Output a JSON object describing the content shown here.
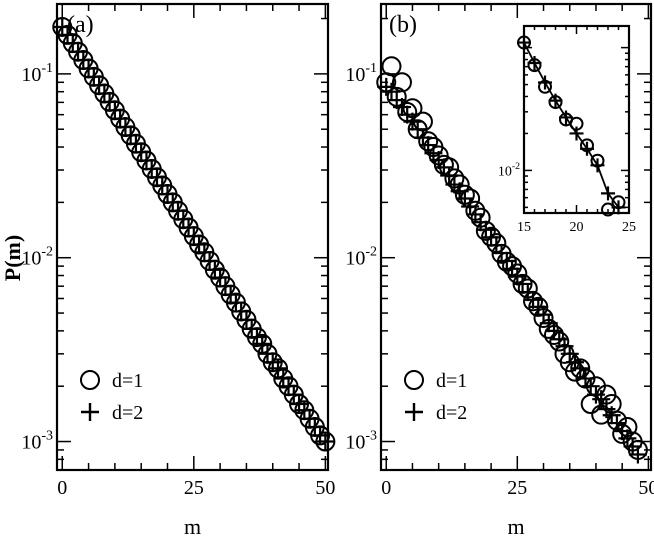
{
  "figure": {
    "ylabel": "P(m)",
    "legend": [
      {
        "label": "d=1",
        "marker": "circle"
      },
      {
        "label": "d=2",
        "marker": "plus"
      }
    ]
  },
  "chart_data": [
    {
      "type": "scatter",
      "panel_label": "(a)",
      "xlabel": "m",
      "ylabel": "P(m)",
      "xlim": [
        -1,
        50.5
      ],
      "ylim": [
        0.0007,
        0.24
      ],
      "y_scale": "log",
      "x_ticks": [
        0,
        25,
        50
      ],
      "y_ticks": [
        0.1,
        0.01,
        0.001
      ],
      "y_tick_labels": [
        {
          "base": "10",
          "exp": "-1"
        },
        {
          "base": "10",
          "exp": "-2"
        },
        {
          "base": "10",
          "exp": "-3"
        }
      ],
      "legend_placement": "bottom-left",
      "series": [
        {
          "name": "d=1",
          "marker": "circle",
          "x": [
            0,
            1,
            2,
            3,
            4,
            5,
            6,
            7,
            8,
            9,
            10,
            11,
            12,
            13,
            14,
            15,
            16,
            17,
            18,
            19,
            20,
            21,
            22,
            23,
            24,
            25,
            26,
            27,
            28,
            29,
            30,
            31,
            32,
            33,
            34,
            35,
            36,
            37,
            38,
            39,
            40,
            41,
            42,
            43,
            44,
            45,
            46,
            47,
            48,
            49,
            50
          ],
          "y": [
            0.18,
            0.163,
            0.147,
            0.132,
            0.119,
            0.107,
            0.0964,
            0.0868,
            0.0782,
            0.0704,
            0.0634,
            0.0571,
            0.0514,
            0.0463,
            0.0417,
            0.0375,
            0.0338,
            0.0304,
            0.0274,
            0.0247,
            0.0222,
            0.02,
            0.018,
            0.0162,
            0.0146,
            0.0131,
            0.0118,
            0.0107,
            0.0096,
            0.0086,
            0.0078,
            0.007,
            0.0063,
            0.0057,
            0.0051,
            0.0046,
            0.0041,
            0.0037,
            0.0034,
            0.003,
            0.0027,
            0.0025,
            0.0022,
            0.002,
            0.0018,
            0.0016,
            0.00148,
            0.00133,
            0.0012,
            0.00108,
            0.001
          ]
        },
        {
          "name": "d=2",
          "marker": "plus",
          "x": [
            0,
            1,
            2,
            3,
            4,
            5,
            6,
            7,
            8,
            9,
            10,
            11,
            12,
            13,
            14,
            15,
            16,
            17,
            18,
            19,
            20,
            21,
            22,
            23,
            24,
            25,
            26,
            27,
            28,
            29,
            30,
            31,
            32,
            33,
            34,
            35,
            36,
            37,
            38,
            39,
            40,
            41,
            42,
            43,
            44,
            45,
            46,
            47,
            48,
            49,
            50
          ],
          "y": [
            0.18,
            0.163,
            0.147,
            0.132,
            0.119,
            0.107,
            0.0964,
            0.0868,
            0.0782,
            0.0704,
            0.0634,
            0.0571,
            0.0514,
            0.0463,
            0.0417,
            0.0375,
            0.0338,
            0.0304,
            0.0274,
            0.0247,
            0.0222,
            0.02,
            0.018,
            0.0162,
            0.0146,
            0.0131,
            0.0118,
            0.0107,
            0.0096,
            0.0086,
            0.0078,
            0.007,
            0.0063,
            0.0057,
            0.0051,
            0.0046,
            0.0041,
            0.0037,
            0.0034,
            0.003,
            0.0027,
            0.0025,
            0.0022,
            0.002,
            0.0018,
            0.0016,
            0.00148,
            0.00133,
            0.0012,
            0.00108,
            0.001
          ]
        }
      ]
    },
    {
      "type": "scatter",
      "panel_label": "(b)",
      "xlabel": "m",
      "xlim": [
        -1,
        50.5
      ],
      "ylim": [
        0.0007,
        0.24
      ],
      "y_scale": "log",
      "x_ticks": [
        0,
        25,
        50
      ],
      "y_ticks": [
        0.1,
        0.01,
        0.001
      ],
      "y_tick_labels": [
        {
          "base": "10",
          "exp": "-1"
        },
        {
          "base": "10",
          "exp": "-2"
        },
        {
          "base": "10",
          "exp": "-3"
        }
      ],
      "legend_placement": "bottom-left",
      "series": [
        {
          "name": "d=1",
          "marker": "circle",
          "x": [
            0,
            1,
            2,
            3,
            4,
            5,
            6,
            7,
            8,
            9,
            10,
            11,
            12,
            13,
            14,
            15,
            16,
            17,
            18,
            19,
            20,
            21,
            22,
            23,
            24,
            25,
            26,
            27,
            28,
            29,
            30,
            31,
            32,
            33,
            34,
            35,
            36,
            37,
            38,
            39,
            40,
            41,
            42,
            43,
            44,
            45,
            46,
            47,
            48
          ],
          "y": [
            0.09,
            0.11,
            0.075,
            0.09,
            0.062,
            0.065,
            0.05,
            0.055,
            0.043,
            0.04,
            0.036,
            0.032,
            0.031,
            0.027,
            0.025,
            0.022,
            0.021,
            0.018,
            0.0165,
            0.014,
            0.013,
            0.012,
            0.0105,
            0.0095,
            0.009,
            0.0082,
            0.0072,
            0.0068,
            0.0058,
            0.0054,
            0.0047,
            0.0041,
            0.0038,
            0.0035,
            0.003,
            0.0027,
            0.0024,
            0.0025,
            0.0022,
            0.0016,
            0.002,
            0.0014,
            0.0018,
            0.0016,
            0.0013,
            0.0011,
            0.0012,
            0.001,
            0.0009
          ]
        },
        {
          "name": "d=2",
          "marker": "plus",
          "x": [
            0,
            1,
            2,
            3,
            4,
            5,
            6,
            7,
            8,
            9,
            10,
            11,
            12,
            13,
            14,
            15,
            16,
            17,
            18,
            19,
            20,
            21,
            22,
            23,
            24,
            25,
            26,
            27,
            28,
            29,
            30,
            31,
            32,
            33,
            34,
            35,
            36,
            37,
            38,
            39,
            40,
            41,
            42,
            43,
            44,
            45,
            46,
            47,
            48
          ],
          "y": [
            0.085,
            0.08,
            0.072,
            0.066,
            0.06,
            0.055,
            0.05,
            0.045,
            0.041,
            0.037,
            0.034,
            0.031,
            0.028,
            0.025,
            0.023,
            0.021,
            0.019,
            0.0172,
            0.0156,
            0.0142,
            0.0129,
            0.0117,
            0.0106,
            0.0096,
            0.0087,
            0.0079,
            0.0072,
            0.0065,
            0.0059,
            0.0054,
            0.0049,
            0.0044,
            0.004,
            0.0036,
            0.0033,
            0.003,
            0.0027,
            0.0025,
            0.0022,
            0.002,
            0.0018,
            0.0017,
            0.0015,
            0.00139,
            0.00126,
            0.00114,
            0.00104,
            0.00094,
            0.00085
          ]
        }
      ]
    },
    {
      "type": "scatter",
      "panel_label": "",
      "inset": true,
      "xlim": [
        15,
        25
      ],
      "ylim": [
        0.0045,
        0.15
      ],
      "y_scale": "log",
      "x_ticks": [
        15,
        20,
        25
      ],
      "y_ticks": [
        0.01
      ],
      "y_tick_labels": [
        {
          "base": "10",
          "exp": "-2"
        }
      ],
      "series": [
        {
          "name": "d=1",
          "marker": "circle",
          "x": [
            15,
            16,
            17,
            18,
            19,
            20,
            21,
            22,
            23,
            24
          ],
          "y": [
            0.11,
            0.072,
            0.048,
            0.036,
            0.026,
            0.024,
            0.016,
            0.012,
            0.0048,
            0.0055
          ]
        },
        {
          "name": "d=2",
          "marker": "plus",
          "x": [
            15,
            16,
            17,
            18,
            19,
            20,
            21,
            22,
            23,
            24
          ],
          "y": [
            0.11,
            0.075,
            0.052,
            0.037,
            0.027,
            0.02,
            0.015,
            0.011,
            0.0065,
            0.005
          ]
        }
      ]
    }
  ]
}
